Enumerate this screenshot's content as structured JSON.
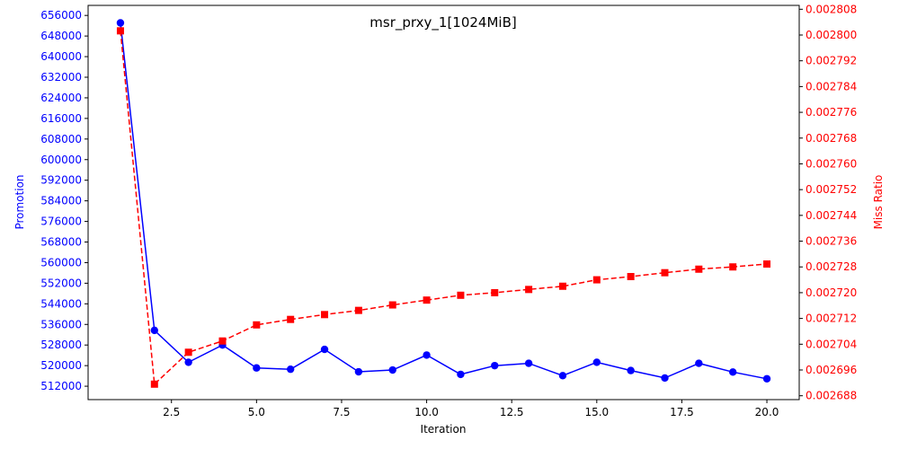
{
  "chart_data": {
    "type": "line",
    "title": "msr_prxy_1[1024MiB]",
    "xlabel": "Iteration",
    "xlim": [
      0.05,
      20.95
    ],
    "x_ticks": [
      2.5,
      5.0,
      7.5,
      10.0,
      12.5,
      15.0,
      17.5,
      20.0
    ],
    "x_tick_labels": [
      "2.5",
      "5.0",
      "7.5",
      "10.0",
      "12.5",
      "15.0",
      "17.5",
      "20.0"
    ],
    "x": [
      1,
      2,
      3,
      4,
      5,
      6,
      7,
      8,
      9,
      10,
      11,
      12,
      13,
      14,
      15,
      16,
      17,
      18,
      19,
      20
    ],
    "left_axis": {
      "label": "Promotion",
      "color": "#0000ff",
      "ylim": [
        506800,
        659900
      ],
      "ticks": [
        512000,
        520000,
        528000,
        536000,
        544000,
        552000,
        560000,
        568000,
        576000,
        584000,
        592000,
        600000,
        608000,
        616000,
        624000,
        632000,
        640000,
        648000,
        656000
      ],
      "tick_labels": [
        "512000",
        "520000",
        "528000",
        "536000",
        "544000",
        "552000",
        "560000",
        "568000",
        "576000",
        "584000",
        "592000",
        "600000",
        "608000",
        "616000",
        "624000",
        "632000",
        "640000",
        "648000",
        "656000"
      ]
    },
    "right_axis": {
      "label": "Miss Ratio",
      "color": "#ff0000",
      "ylim": [
        0.0026868,
        0.0028092
      ],
      "ticks": [
        0.002688,
        0.002696,
        0.002704,
        0.002712,
        0.00272,
        0.002728,
        0.002736,
        0.002744,
        0.002752,
        0.00276,
        0.002768,
        0.002776,
        0.002784,
        0.002792,
        0.0028,
        0.002808
      ],
      "tick_labels": [
        "0.002688",
        "0.002696",
        "0.002704",
        "0.002712",
        "0.002720",
        "0.002728",
        "0.002736",
        "0.002744",
        "0.002752",
        "0.002760",
        "0.002768",
        "0.002776",
        "0.002784",
        "0.002792",
        "0.002800",
        "0.002808"
      ]
    },
    "series": [
      {
        "axis": "left",
        "color": "#0000ff",
        "line_style": "solid",
        "marker": "circle",
        "values": [
          653100,
          533700,
          521300,
          528000,
          519100,
          518600,
          526300,
          517600,
          518300,
          524100,
          516600,
          520000,
          520900,
          516100,
          521300,
          518100,
          515200,
          520900,
          517500,
          514900
        ]
      },
      {
        "axis": "right",
        "color": "#ff0000",
        "line_style": "dashed",
        "marker": "square",
        "values": [
          0.0028013,
          0.0026916,
          0.0027015,
          0.002705,
          0.00271,
          0.0027117,
          0.0027132,
          0.0027145,
          0.0027162,
          0.0027177,
          0.0027192,
          0.00272,
          0.002721,
          0.002722,
          0.002724,
          0.002725,
          0.0027262,
          0.0027273,
          0.002728,
          0.0027289
        ]
      }
    ]
  }
}
